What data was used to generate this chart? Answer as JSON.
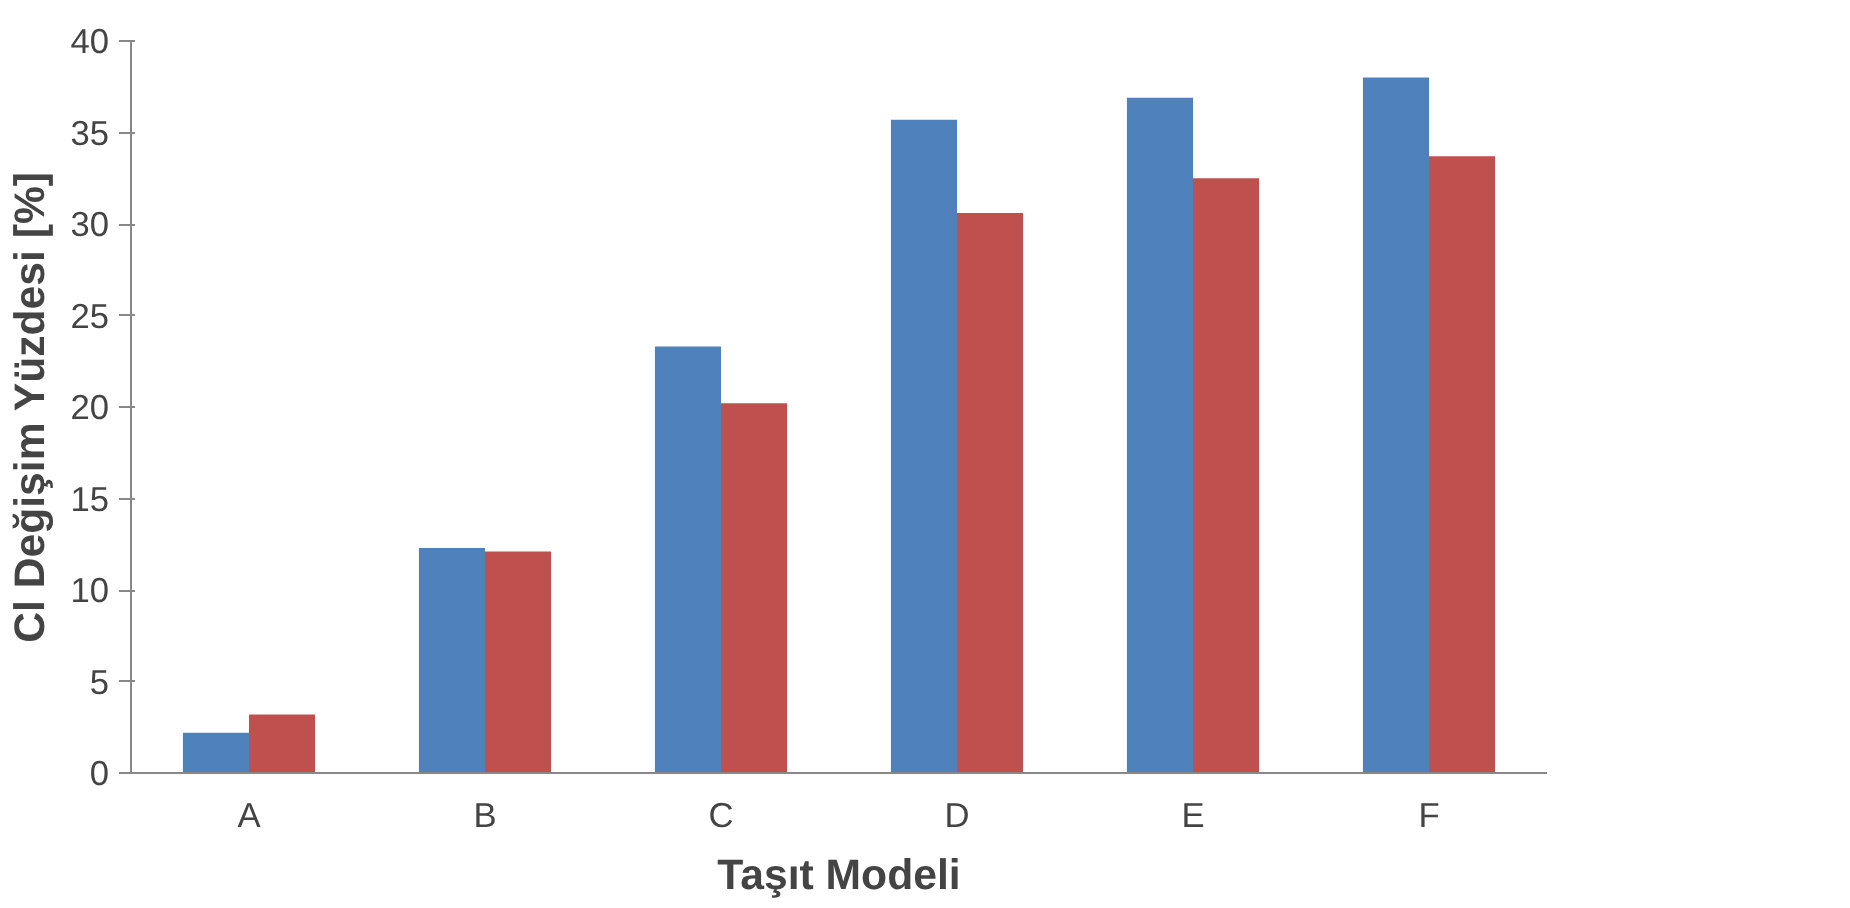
{
  "chart_data": {
    "type": "bar",
    "xlabel": "Taşıt Modeli",
    "ylabel": "Cl Değişim Yüzdesi [%]",
    "categories": [
      "A",
      "B",
      "C",
      "D",
      "E",
      "F"
    ],
    "series": [
      {
        "color": "#4f81bd",
        "values": [
          2.2,
          12.3,
          23.3,
          35.7,
          36.9,
          38.0
        ]
      },
      {
        "color": "#c0504d",
        "values": [
          3.2,
          12.1,
          20.2,
          30.6,
          32.5,
          33.7
        ]
      }
    ],
    "ylim": [
      0,
      40
    ],
    "yticks": [
      0,
      5,
      10,
      15,
      20,
      25,
      30,
      35,
      40
    ],
    "grid": false
  }
}
